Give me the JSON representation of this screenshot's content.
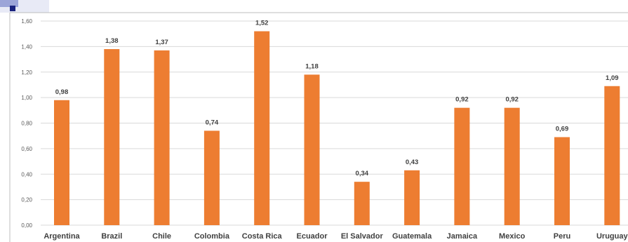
{
  "chart_data": {
    "type": "bar",
    "categories": [
      "Argentina",
      "Brazil",
      "Chile",
      "Colombia",
      "Costa Rica",
      "Ecuador",
      "El Salvador",
      "Guatemala",
      "Jamaica",
      "Mexico",
      "Peru",
      "Uruguay"
    ],
    "values": [
      0.98,
      1.38,
      1.37,
      0.74,
      1.52,
      1.18,
      0.34,
      0.43,
      0.92,
      0.92,
      0.69,
      1.09
    ],
    "data_labels": [
      "0,98",
      "1,38",
      "1,37",
      "0,74",
      "1,52",
      "1,18",
      "0,34",
      "0,43",
      "0,92",
      "0,92",
      "0,69",
      "1,09"
    ],
    "yticks": [
      0,
      0.2,
      0.4,
      0.6,
      0.8,
      1.0,
      1.2,
      1.4,
      1.6
    ],
    "ytick_labels": [
      "0,00",
      "0,20",
      "0,40",
      "0,60",
      "0,80",
      "1,00",
      "1,20",
      "1,40",
      "1,60"
    ],
    "ylim": [
      0,
      1.6
    ],
    "title": "",
    "xlabel": "",
    "ylabel": "",
    "grid": true,
    "legend": "none",
    "bar_color": "#ED7D31",
    "grid_color": "#D9D9D9"
  }
}
